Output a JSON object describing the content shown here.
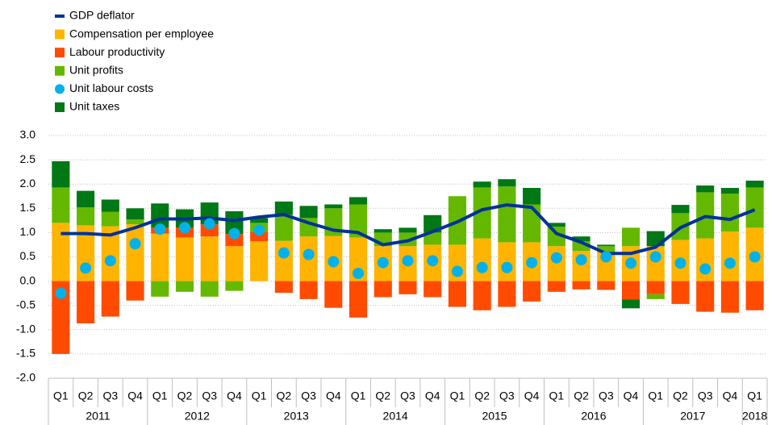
{
  "chart_data": {
    "type": "bar",
    "stacked": true,
    "categories": [
      "Q1",
      "Q2",
      "Q3",
      "Q4",
      "Q1",
      "Q2",
      "Q3",
      "Q4",
      "Q1",
      "Q2",
      "Q3",
      "Q4",
      "Q1",
      "Q2",
      "Q3",
      "Q4",
      "Q1",
      "Q2",
      "Q3",
      "Q4",
      "Q1",
      "Q2",
      "Q3",
      "Q4",
      "Q1",
      "Q2",
      "Q3",
      "Q4",
      "Q1"
    ],
    "x_groups": [
      "2011",
      "2012",
      "2013",
      "2014",
      "2015",
      "2016",
      "2017",
      "2018"
    ],
    "series": [
      {
        "name": "GDP deflator",
        "type": "line",
        "color": "#003299",
        "values": [
          0.98,
          0.98,
          0.95,
          1.1,
          1.28,
          1.28,
          1.3,
          1.25,
          1.32,
          1.37,
          1.2,
          1.05,
          1.0,
          0.75,
          0.83,
          1.02,
          1.22,
          1.47,
          1.57,
          1.52,
          0.98,
          0.8,
          0.57,
          0.57,
          0.7,
          1.1,
          1.33,
          1.27,
          1.47
        ]
      },
      {
        "name": "Compensation per employee",
        "type": "bar",
        "color": "#FFB400",
        "values": [
          1.2,
          1.15,
          1.13,
          1.17,
          0.98,
          0.9,
          0.92,
          0.72,
          0.82,
          0.83,
          0.92,
          0.93,
          0.9,
          0.72,
          0.72,
          0.75,
          0.75,
          0.88,
          0.8,
          0.8,
          0.72,
          0.62,
          0.6,
          0.72,
          0.72,
          0.85,
          0.88,
          1.02,
          1.1
        ]
      },
      {
        "name": "Labour productivity",
        "type": "bar",
        "color": "#FF4B00",
        "values": [
          -1.5,
          -0.87,
          -0.73,
          -0.4,
          0.12,
          0.2,
          0.25,
          0.25,
          0.2,
          -0.24,
          -0.37,
          -0.55,
          -0.75,
          -0.33,
          -0.27,
          -0.33,
          -0.53,
          -0.6,
          -0.53,
          -0.42,
          -0.22,
          -0.17,
          -0.18,
          -0.38,
          -0.27,
          -0.47,
          -0.63,
          -0.65,
          -0.6
        ]
      },
      {
        "name": "Unit profits",
        "type": "bar",
        "color": "#65B800",
        "values": [
          0.73,
          0.37,
          0.3,
          0.1,
          -0.32,
          -0.22,
          -0.32,
          -0.2,
          0.18,
          0.54,
          0.38,
          0.57,
          0.68,
          0.28,
          0.28,
          0.25,
          1.0,
          1.05,
          1.15,
          0.78,
          0.4,
          0.2,
          0.12,
          0.38,
          -0.1,
          0.55,
          0.95,
          0.78,
          0.83
        ]
      },
      {
        "name": "Unit labour costs",
        "type": "scatter",
        "color": "#00B1EA",
        "values": [
          -0.25,
          0.27,
          0.42,
          0.77,
          1.07,
          1.1,
          1.18,
          0.98,
          1.05,
          0.58,
          0.55,
          0.4,
          0.16,
          0.38,
          0.42,
          0.42,
          0.2,
          0.28,
          0.28,
          0.38,
          0.48,
          0.44,
          0.5,
          0.37,
          0.5,
          0.37,
          0.25,
          0.37,
          0.5
        ]
      },
      {
        "name": "Unit taxes",
        "type": "bar",
        "color": "#007816",
        "values": [
          0.54,
          0.34,
          0.25,
          0.23,
          0.5,
          0.38,
          0.45,
          0.47,
          0.1,
          0.27,
          0.25,
          0.08,
          0.15,
          0.07,
          0.1,
          0.36,
          0,
          0.12,
          0.15,
          0.34,
          0.08,
          0.1,
          0.03,
          -0.18,
          0.31,
          0.17,
          0.14,
          0.12,
          0.14
        ]
      }
    ],
    "ylim": [
      -2,
      3
    ],
    "yticks": [
      {
        "value": -2,
        "label": "-2.0"
      },
      {
        "value": -1.5,
        "label": "-1.5"
      },
      {
        "value": -1,
        "label": "-1.0"
      },
      {
        "value": -0.5,
        "label": "-0.5"
      },
      {
        "value": 0,
        "label": "0.0"
      },
      {
        "value": 0.5,
        "label": "0.5"
      },
      {
        "value": 1,
        "label": "1.0"
      },
      {
        "value": 1.5,
        "label": "1.5"
      },
      {
        "value": 2,
        "label": "2.0"
      },
      {
        "value": 2.5,
        "label": "2.5"
      },
      {
        "value": 3,
        "label": "3.0"
      }
    ],
    "grid": true,
    "legend": "top-left"
  }
}
